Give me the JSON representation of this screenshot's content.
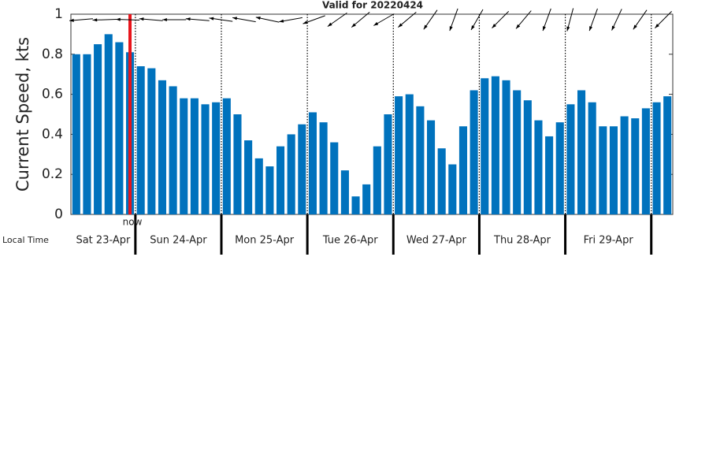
{
  "chart_data": {
    "type": "bar",
    "title": "Valid for 20220424",
    "y_label": "Current Speed, kts",
    "x_label": "Local Time",
    "now_label": "now",
    "now_at": 5.5,
    "color": "#0072bd",
    "now_color": "#e8141b",
    "categories": [
      null,
      null,
      null,
      null,
      null,
      null,
      null,
      null,
      null,
      null,
      null,
      null,
      null,
      null,
      null,
      null,
      null,
      null,
      null,
      null,
      null,
      null,
      null,
      null,
      null,
      null,
      null,
      null,
      null,
      null,
      null,
      null,
      null,
      null,
      null,
      null,
      null,
      null,
      null,
      null,
      null,
      null,
      null,
      null,
      null,
      null,
      null,
      null,
      null,
      null,
      null,
      null,
      null,
      null,
      null,
      null
    ],
    "values": [
      0.8,
      0.8,
      0.85,
      0.9,
      0.86,
      0.81,
      0.74,
      0.73,
      0.67,
      0.64,
      0.58,
      0.58,
      0.55,
      0.56,
      0.58,
      0.5,
      0.37,
      0.28,
      0.24,
      0.34,
      0.4,
      0.45,
      0.51,
      0.46,
      0.36,
      0.22,
      0.09,
      0.15,
      0.34,
      0.5,
      0.59,
      0.6,
      0.54,
      0.47,
      0.33,
      0.25,
      0.44,
      0.62,
      0.68,
      0.69,
      0.67,
      0.62,
      0.57,
      0.47,
      0.39,
      0.46,
      0.55,
      0.62,
      0.56,
      0.44,
      0.44,
      0.49,
      0.48,
      0.53,
      0.56,
      0.59
    ],
    "day_labels": [
      "Sat 23-Apr",
      "Sun 24-Apr",
      "Mon 25-Apr",
      "Tue 26-Apr",
      "Wed 27-Apr",
      "Thu 28-Apr",
      "Fri 29-Apr"
    ],
    "direction_deg": [
      265,
      268,
      272,
      275,
      270,
      275,
      278,
      280,
      282,
      260,
      250,
      235,
      230,
      240,
      230,
      215,
      200,
      210,
      225,
      220,
      200,
      195,
      200,
      205,
      215,
      225
    ],
    "ylim": [
      0,
      1
    ],
    "yticks": [
      0,
      0.2,
      0.4,
      0.6,
      0.8,
      1
    ]
  }
}
